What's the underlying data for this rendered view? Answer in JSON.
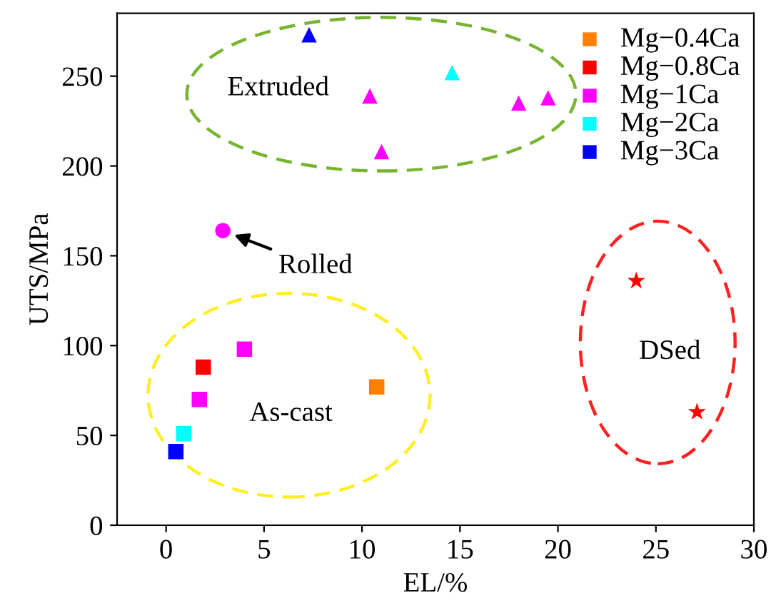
{
  "chart_data": {
    "type": "scatter",
    "xlabel": "EL/%",
    "ylabel": "UTS/MPa",
    "xlim": [
      -2.5,
      30
    ],
    "xticks": [
      0,
      5,
      10,
      15,
      20,
      25,
      30
    ],
    "ylim": [
      0,
      285
    ],
    "yticks": [
      0,
      50,
      100,
      150,
      200,
      250
    ],
    "grid": false,
    "legend": "top right",
    "series": [
      {
        "name": "Mg−0.4Ca",
        "color": "#ff7f00",
        "marker": "square",
        "x": [
          10.75
        ],
        "values": [
          77
        ]
      },
      {
        "name": "Mg−0.8Ca",
        "color": "#ff0000",
        "marker": "square",
        "x": [
          1.9
        ],
        "values": [
          88
        ]
      },
      {
        "name": "Mg−1Ca",
        "color": "#ff00ff",
        "marker": "square",
        "x": [
          4.0,
          1.7
        ],
        "values": [
          98,
          70
        ]
      },
      {
        "name": "Mg−2Ca",
        "color": "#00ffff",
        "marker": "square",
        "x": [
          0.9
        ],
        "values": [
          51
        ]
      },
      {
        "name": "Mg−3Ca",
        "color": "#0000ff",
        "marker": "square",
        "x": [
          0.5
        ],
        "values": [
          41
        ]
      },
      {
        "color": "#ff00ff",
        "marker": "triangle",
        "x": [
          10.4,
          11.0,
          18.0,
          19.5
        ],
        "values": [
          239,
          208,
          235,
          238
        ]
      },
      {
        "color": "#00ffff",
        "marker": "triangle",
        "x": [
          14.6
        ],
        "values": [
          252
        ]
      },
      {
        "color": "#0000ff",
        "marker": "triangle",
        "x": [
          7.3
        ],
        "values": [
          273
        ]
      },
      {
        "color": "#ff00ff",
        "marker": "circle",
        "x": [
          2.9
        ],
        "values": [
          164
        ]
      },
      {
        "color": "#ff0000",
        "marker": "star",
        "x": [
          24.0,
          27.1
        ],
        "values": [
          136,
          63
        ]
      }
    ],
    "annotations": [
      "Extruded",
      {
        "text": "Rolled",
        "x": 2.9,
        "y": 164
      },
      "As-cast",
      "DSed"
    ]
  }
}
